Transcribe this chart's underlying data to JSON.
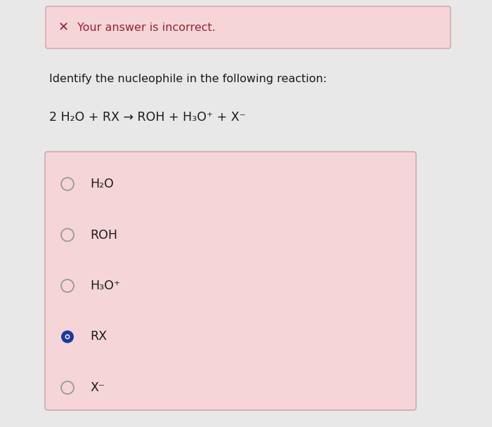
{
  "bg_color": "#e8e8e8",
  "content_bg": "#f0f0f0",
  "banner_bg": "#f5d5d8",
  "banner_border": "#d4a0a8",
  "banner_text": "Your answer is incorrect.",
  "banner_x_color": "#9b2335",
  "question_text": "Identify the nucleophile in the following reaction:",
  "reaction_text": "2 H₂O + RX → ROH + H₃O⁺ + X⁻",
  "options_box_bg": "#f5d5d8",
  "options_box_border": "#c8a0a8",
  "options": [
    {
      "label": "H₂O",
      "selected": false
    },
    {
      "label": "ROH",
      "selected": false
    },
    {
      "label": "H₃O⁺",
      "selected": false
    },
    {
      "label": "RX",
      "selected": true
    },
    {
      "label": "X⁻",
      "selected": false
    }
  ],
  "radio_color_unselected": "#999999",
  "radio_color_selected": "#1a3a9e",
  "radio_dot_color": "#1a3a9e",
  "text_color": "#1a1a1a",
  "reaction_color": "#1a1a1a",
  "font_size_banner": 11.5,
  "font_size_question": 11.5,
  "font_size_reaction": 12.5,
  "font_size_options": 12.5
}
